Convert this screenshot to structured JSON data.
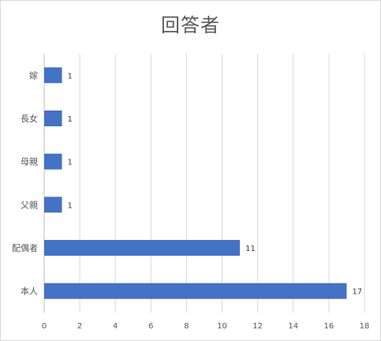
{
  "chart_data": {
    "type": "bar",
    "orientation": "horizontal",
    "title": "回答者",
    "categories": [
      "嫁",
      "長女",
      "母親",
      "父親",
      "配偶者",
      "本人"
    ],
    "values": [
      1,
      1,
      1,
      1,
      11,
      17
    ],
    "xlim": [
      0,
      18
    ],
    "x_ticks": [
      "0",
      "2",
      "4",
      "6",
      "8",
      "10",
      "12",
      "14",
      "16",
      "18"
    ],
    "grid": "vertical",
    "legend": "none",
    "bar_color": "#4472c4",
    "data_labels": [
      "1",
      "1",
      "1",
      "1",
      "11",
      "17"
    ]
  }
}
